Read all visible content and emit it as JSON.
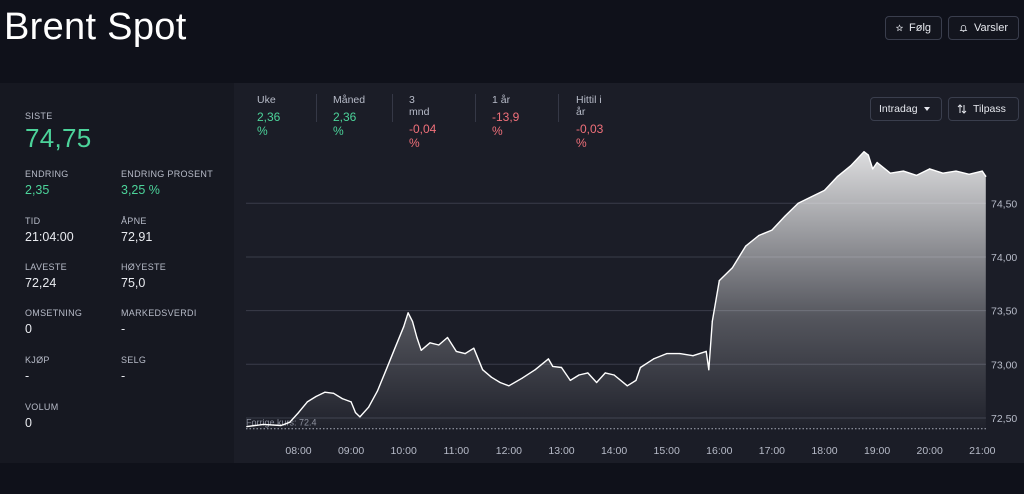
{
  "header": {
    "title": "Brent Spot",
    "follow_label": "Følg",
    "alerts_label": "Varsler"
  },
  "stats": {
    "last": {
      "label": "SISTE",
      "value": "74,75"
    },
    "change": {
      "label": "ENDRING",
      "value": "2,35"
    },
    "change_pct": {
      "label": "ENDRING PROSENT",
      "value": "3,25 %"
    },
    "time": {
      "label": "TID",
      "value": "21:04:00"
    },
    "open": {
      "label": "ÅPNE",
      "value": "72,91"
    },
    "low": {
      "label": "LAVESTE",
      "value": "72,24"
    },
    "high": {
      "label": "HØYESTE",
      "value": "75,0"
    },
    "turnover": {
      "label": "OMSETNING",
      "value": "0"
    },
    "market_value": {
      "label": "MARKEDSVERDI",
      "value": "-"
    },
    "buy": {
      "label": "KJØP",
      "value": "-"
    },
    "sell": {
      "label": "SELG",
      "value": "-"
    },
    "volume": {
      "label": "VOLUM",
      "value": "0"
    }
  },
  "periods": [
    {
      "label": "Uke",
      "value": "2,36 %",
      "sign": "pos"
    },
    {
      "label": "Måned",
      "value": "2,36 %",
      "sign": "pos"
    },
    {
      "label": "3 mnd",
      "value": "-0,04 %",
      "sign": "neg"
    },
    {
      "label": "1 år",
      "value": "-13,9 %",
      "sign": "neg"
    },
    {
      "label": "Hittil i år",
      "value": "-0,03 %",
      "sign": "neg"
    }
  ],
  "controls": {
    "range_label": "Intradag",
    "adjust_label": "Tilpass"
  },
  "colors": {
    "positive": "#4cd39a",
    "negative": "#f0707a",
    "line": "#ffffff"
  },
  "chart_data": {
    "type": "area",
    "x_labels": [
      "08:00",
      "09:00",
      "10:00",
      "11:00",
      "12:00",
      "13:00",
      "14:00",
      "15:00",
      "16:00",
      "17:00",
      "18:00",
      "19:00",
      "20:00",
      "21:00"
    ],
    "y_ticks": [
      "72,50",
      "73,00",
      "73,50",
      "74,00",
      "74,50"
    ],
    "ylim": [
      72.36,
      75.08
    ],
    "previous_close_label": "Forrige kurs: 72.4",
    "previous_close": 72.4,
    "series": [
      {
        "x": [
          "07:01",
          "07:20",
          "07:40",
          "07:50",
          "08:00",
          "08:10",
          "08:20",
          "08:30",
          "08:40",
          "08:50",
          "09:00",
          "09:05",
          "09:10",
          "09:20",
          "09:30",
          "09:40",
          "09:50",
          "10:00",
          "10:05",
          "10:10",
          "10:15",
          "10:20",
          "10:30",
          "10:40",
          "10:50",
          "11:00",
          "11:10",
          "11:20",
          "11:30",
          "11:40",
          "11:50",
          "12:00",
          "12:15",
          "12:30",
          "12:45",
          "12:50",
          "13:00",
          "13:10",
          "13:20",
          "13:30",
          "13:40",
          "13:50",
          "14:00",
          "14:15",
          "14:25",
          "14:30",
          "14:45",
          "15:00",
          "15:15",
          "15:30",
          "15:45",
          "15:48",
          "15:52",
          "16:00",
          "16:15",
          "16:30",
          "16:45",
          "17:00",
          "17:15",
          "17:30",
          "17:45",
          "18:00",
          "18:15",
          "18:30",
          "18:45",
          "18:50",
          "18:55",
          "19:00",
          "19:15",
          "19:30",
          "19:45",
          "20:00",
          "20:15",
          "20:30",
          "20:45",
          "21:00",
          "21:04"
        ],
        "values": [
          72.42,
          72.44,
          72.43,
          72.46,
          72.55,
          72.65,
          72.7,
          72.74,
          72.73,
          72.68,
          72.65,
          72.55,
          72.51,
          72.6,
          72.75,
          72.95,
          73.15,
          73.35,
          73.48,
          73.4,
          73.25,
          73.13,
          73.2,
          73.18,
          73.25,
          73.12,
          73.1,
          73.15,
          72.95,
          72.88,
          72.83,
          72.8,
          72.87,
          72.95,
          73.05,
          72.98,
          72.97,
          72.85,
          72.9,
          72.92,
          72.83,
          72.92,
          72.9,
          72.8,
          72.85,
          72.97,
          73.05,
          73.1,
          73.1,
          73.08,
          73.12,
          72.95,
          73.4,
          73.78,
          73.9,
          74.1,
          74.2,
          74.25,
          74.38,
          74.5,
          74.56,
          74.62,
          74.75,
          74.85,
          74.98,
          74.95,
          74.82,
          74.88,
          74.78,
          74.8,
          74.76,
          74.82,
          74.78,
          74.8,
          74.77,
          74.8,
          74.75
        ]
      }
    ],
    "grid": true,
    "y_axis_position": "right"
  }
}
